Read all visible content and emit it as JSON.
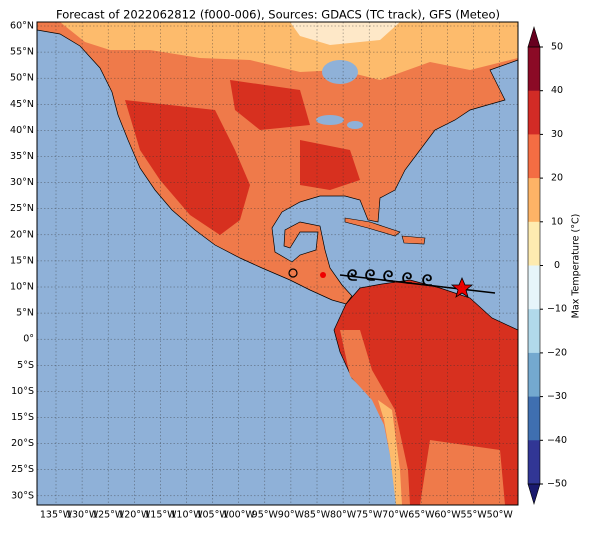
{
  "title": "Forecast of 2022062812 (f000-006), Sources: GDACS (TC track), GFS (Meteo)",
  "lat_labels": [
    "60°N",
    "55°N",
    "50°N",
    "45°N",
    "40°N",
    "35°N",
    "30°N",
    "25°N",
    "20°N",
    "15°N",
    "10°N",
    "5°N",
    "0°",
    "5°S",
    "10°S",
    "15°S",
    "20°S",
    "25°S",
    "30°S"
  ],
  "lon_labels": [
    "135°W",
    "130°W",
    "125°W",
    "120°W",
    "115°W",
    "110°W",
    "105°W",
    "100°W",
    "95°W",
    "90°W",
    "85°W",
    "80°W",
    "75°W",
    "70°W",
    "65°W",
    "60°W",
    "55°W",
    "50°W"
  ],
  "colorbar": {
    "label": "Max Temperature (°C)",
    "tick_labels": [
      "50",
      "40",
      "30",
      "20",
      "10",
      "0",
      "−10",
      "−20",
      "−30",
      "−40",
      "−50"
    ]
  }
}
